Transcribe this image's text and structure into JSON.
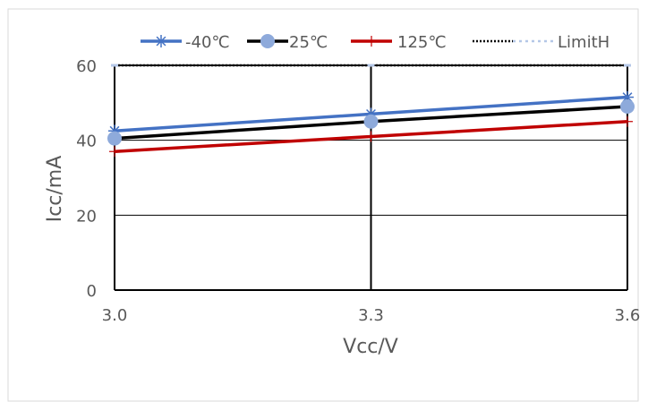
{
  "chart_data": {
    "type": "line",
    "title": "",
    "xlabel": "Vcc/V",
    "ylabel": "Icc/mA",
    "categories": [
      "3.0",
      "3.3",
      "3.6"
    ],
    "x": [
      3.0,
      3.3,
      3.6
    ],
    "ylim": [
      0,
      60
    ],
    "yticks": [
      "0",
      "20",
      "40",
      "60"
    ],
    "grid": true,
    "legend_position": "top",
    "series": [
      {
        "name": "-40℃",
        "values": [
          42.5,
          47,
          51.5
        ],
        "color": "#4472C4",
        "marker": "star"
      },
      {
        "name": "25℃",
        "values": [
          40.5,
          45,
          49
        ],
        "color": "#000000",
        "marker": "circle",
        "marker_color": "#8EAADB"
      },
      {
        "name": "125℃",
        "values": [
          37,
          41,
          45
        ],
        "color": "#C00000",
        "marker": "plus"
      },
      {
        "name": "LimitH",
        "values": [
          60,
          60,
          60
        ],
        "color": "#000000",
        "marker": "dash",
        "marker_color": "#B4C7E7",
        "line_style": "dotted"
      }
    ]
  }
}
